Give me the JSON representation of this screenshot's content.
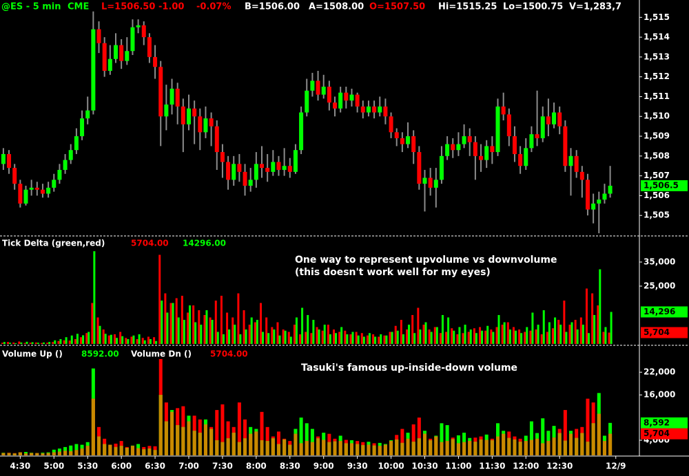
{
  "header": [
    "@ES - 5 min",
    "CME",
    "L=1506.50",
    "-1.00",
    "-0.07%",
    "B=1506.00",
    "A=1508.00",
    "O=1507.50",
    "Hi=1515.25",
    "Lo=1500.75",
    "V=1,283,7"
  ],
  "x_axis": {
    "xlim": [
      -0.6,
      113.2
    ],
    "xticks": [
      {
        "value": 3,
        "label": "4:30"
      },
      {
        "value": 9,
        "label": "5:00"
      },
      {
        "value": 15,
        "label": "5:30"
      },
      {
        "value": 21,
        "label": "6:00"
      },
      {
        "value": 27,
        "label": "6:30"
      },
      {
        "value": 33,
        "label": "7:00"
      },
      {
        "value": 39,
        "label": "7:30"
      },
      {
        "value": 45,
        "label": "8:00"
      },
      {
        "value": 51,
        "label": "8:30"
      },
      {
        "value": 57,
        "label": "9:00"
      },
      {
        "value": 63,
        "label": "9:30"
      },
      {
        "value": 69,
        "label": "10:00"
      },
      {
        "value": 75,
        "label": "10:30"
      },
      {
        "value": 81,
        "label": "11:00"
      },
      {
        "value": 87,
        "label": "11:30"
      },
      {
        "value": 93,
        "label": "12:00"
      },
      {
        "value": 99,
        "label": "12:30"
      },
      {
        "value": 109,
        "label": "12/9"
      }
    ]
  },
  "chart_data": [
    {
      "type": "candlestick",
      "up_color": "#00ff00",
      "down_color": "#ff0000",
      "wick_color": "#8c8c8c",
      "open": [
        1507.6,
        1508.1,
        1507.4,
        1506.6,
        1505.6,
        1506.3,
        1506.4,
        1506.3,
        1506.1,
        1506.4,
        1506.8,
        1507.3,
        1507.8,
        1508.3,
        1509.0,
        1509.9,
        1510.3,
        1514.4,
        1513.7,
        1512.3,
        1512.9,
        1513.6,
        1512.8,
        1513.3,
        1514.5,
        1514.6,
        1514.0,
        1513.0,
        1512.5,
        1510.0,
        1510.6,
        1511.4,
        1510.5,
        1509.6,
        1510.4,
        1510.0,
        1509.2,
        1509.9,
        1509.5,
        1508.2,
        1507.7,
        1506.8,
        1507.6,
        1507.2,
        1506.5,
        1506.8,
        1507.6,
        1507.4,
        1507.2,
        1507.7,
        1507.3,
        1507.5,
        1507.2,
        1508.3,
        1510.2,
        1511.3,
        1511.8,
        1511.1,
        1511.5,
        1510.7,
        1510.4,
        1511.2,
        1510.8,
        1511.1,
        1510.5,
        1510.2,
        1510.5,
        1510.2,
        1510.5,
        1510.0,
        1509.2,
        1508.9,
        1508.6,
        1509.0,
        1508.2,
        1506.6,
        1506.9,
        1506.4,
        1506.8,
        1508.0,
        1508.6,
        1508.3,
        1508.6,
        1509.0,
        1508.7,
        1508.0,
        1507.8,
        1508.5,
        1508.2,
        1510.5,
        1510.1,
        1509.0,
        1508.1,
        1507.5,
        1508.4,
        1509.1,
        1508.9,
        1510.0,
        1509.6,
        1510.2,
        1509.5,
        1507.5,
        1508.0,
        1507.2,
        1506.8,
        1505.3,
        1505.6,
        1505.8,
        1506.1
      ],
      "high": [
        1508.4,
        1508.3,
        1507.6,
        1506.8,
        1506.5,
        1506.8,
        1506.7,
        1506.6,
        1506.7,
        1507.1,
        1507.6,
        1508.1,
        1508.6,
        1509.4,
        1510.3,
        1511.0,
        1515.3,
        1514.8,
        1514.0,
        1513.6,
        1514.2,
        1513.9,
        1514.0,
        1514.9,
        1514.9,
        1514.8,
        1514.2,
        1513.6,
        1512.8,
        1511.6,
        1511.9,
        1511.7,
        1510.9,
        1511.1,
        1510.8,
        1510.4,
        1510.5,
        1510.2,
        1509.8,
        1508.6,
        1508.0,
        1508.0,
        1508.1,
        1507.6,
        1507.4,
        1508.2,
        1508.5,
        1508.1,
        1508.3,
        1508.0,
        1508.4,
        1507.9,
        1508.6,
        1510.5,
        1511.9,
        1512.2,
        1512.3,
        1512.1,
        1511.8,
        1511.0,
        1511.5,
        1511.5,
        1511.4,
        1511.2,
        1510.8,
        1510.8,
        1510.8,
        1511.0,
        1510.9,
        1510.2,
        1509.4,
        1509.2,
        1509.7,
        1509.3,
        1508.5,
        1507.3,
        1507.4,
        1507.4,
        1508.5,
        1509.0,
        1508.9,
        1509.2,
        1509.6,
        1509.4,
        1509.0,
        1508.6,
        1508.8,
        1509.0,
        1510.9,
        1511.2,
        1510.4,
        1509.5,
        1508.5,
        1508.9,
        1509.5,
        1511.3,
        1510.5,
        1510.9,
        1510.7,
        1510.5,
        1509.8,
        1508.4,
        1508.3,
        1507.5,
        1507.1,
        1506.1,
        1506.2,
        1506.6,
        1507.5
      ],
      "low": [
        1507.3,
        1507.1,
        1506.3,
        1505.4,
        1505.5,
        1506.0,
        1506.0,
        1505.9,
        1505.9,
        1506.2,
        1506.6,
        1507.1,
        1507.6,
        1508.1,
        1508.8,
        1509.6,
        1510.1,
        1513.2,
        1512.0,
        1512.1,
        1512.7,
        1512.4,
        1512.6,
        1513.1,
        1514.2,
        1513.6,
        1512.7,
        1511.9,
        1508.5,
        1509.3,
        1510.1,
        1509.6,
        1508.2,
        1509.3,
        1508.6,
        1508.3,
        1508.9,
        1508.5,
        1507.3,
        1506.9,
        1506.3,
        1506.5,
        1506.7,
        1506.0,
        1506.2,
        1506.4,
        1506.9,
        1506.7,
        1507.0,
        1507.0,
        1507.0,
        1506.9,
        1507.1,
        1508.1,
        1510.0,
        1511.0,
        1510.8,
        1510.9,
        1510.3,
        1510.0,
        1510.2,
        1510.4,
        1510.5,
        1510.2,
        1509.9,
        1510.0,
        1509.9,
        1510.0,
        1509.6,
        1508.9,
        1508.5,
        1508.2,
        1508.4,
        1507.6,
        1506.3,
        1505.2,
        1506.0,
        1505.4,
        1506.6,
        1507.8,
        1507.9,
        1508.0,
        1508.4,
        1508.0,
        1506.8,
        1507.2,
        1507.4,
        1507.6,
        1508.0,
        1509.8,
        1508.5,
        1507.7,
        1507.1,
        1507.3,
        1508.2,
        1508.5,
        1508.7,
        1509.0,
        1509.4,
        1509.1,
        1507.2,
        1506.0,
        1506.9,
        1505.9,
        1505.0,
        1504.6,
        1504.1,
        1505.6,
        1505.9
      ],
      "close": [
        1508.1,
        1507.4,
        1506.6,
        1505.6,
        1506.3,
        1506.4,
        1506.3,
        1506.1,
        1506.4,
        1506.8,
        1507.3,
        1507.8,
        1508.3,
        1509.0,
        1509.9,
        1510.3,
        1514.4,
        1513.7,
        1512.3,
        1512.9,
        1513.6,
        1512.8,
        1513.3,
        1514.5,
        1514.6,
        1514.0,
        1513.0,
        1512.5,
        1510.0,
        1510.6,
        1511.4,
        1510.5,
        1509.6,
        1510.4,
        1510.0,
        1509.2,
        1509.9,
        1509.5,
        1508.2,
        1507.7,
        1506.8,
        1507.6,
        1507.2,
        1506.5,
        1506.8,
        1507.6,
        1507.4,
        1507.2,
        1507.7,
        1507.3,
        1507.5,
        1507.2,
        1508.3,
        1510.2,
        1511.3,
        1511.8,
        1511.1,
        1511.5,
        1510.7,
        1510.4,
        1511.2,
        1510.8,
        1511.1,
        1510.5,
        1510.2,
        1510.5,
        1510.2,
        1510.5,
        1510.0,
        1509.2,
        1508.9,
        1508.6,
        1509.0,
        1508.2,
        1506.6,
        1506.9,
        1506.4,
        1506.8,
        1508.0,
        1508.6,
        1508.3,
        1508.6,
        1509.0,
        1508.7,
        1508.0,
        1507.8,
        1508.5,
        1508.2,
        1510.5,
        1510.1,
        1509.0,
        1508.1,
        1507.5,
        1508.4,
        1509.1,
        1508.9,
        1510.0,
        1509.6,
        1510.2,
        1509.5,
        1507.5,
        1508.0,
        1507.2,
        1506.8,
        1505.3,
        1505.6,
        1505.8,
        1506.1,
        1506.5
      ],
      "ylim": [
        1504.0,
        1515.6
      ],
      "yticks": [
        {
          "value": 1505,
          "label": "1,505"
        },
        {
          "value": 1506,
          "label": "1,506"
        },
        {
          "value": 1507,
          "label": "1,507"
        },
        {
          "value": 1508,
          "label": "1,508"
        },
        {
          "value": 1509,
          "label": "1,509"
        },
        {
          "value": 1510,
          "label": "1,510"
        },
        {
          "value": 1511,
          "label": "1,511"
        },
        {
          "value": 1512,
          "label": "1,512"
        },
        {
          "value": 1513,
          "label": "1,513"
        },
        {
          "value": 1514,
          "label": "1,514"
        },
        {
          "value": 1515,
          "label": "1,515"
        }
      ],
      "last_label": "1,506.5"
    },
    {
      "type": "paired-bar",
      "title": "Tick Delta (green,red)",
      "annotations": [
        "One way to represent upvolume vs downvolume",
        "(this doesn't work well for my eyes)"
      ],
      "series": [
        {
          "color": "#ff0000",
          "readout": "5704.00",
          "last_label": "5,704",
          "values": [
            1500,
            1800,
            1600,
            2000,
            1400,
            1500,
            1600,
            1400,
            1500,
            1800,
            2200,
            2500,
            2400,
            3000,
            3800,
            5500,
            18000,
            12000,
            7000,
            4500,
            5000,
            6000,
            3500,
            4000,
            3000,
            3500,
            4000,
            3800,
            38000,
            22000,
            18000,
            20000,
            21000,
            14000,
            17000,
            15000,
            13000,
            12000,
            19000,
            21000,
            14000,
            12000,
            22000,
            15000,
            9000,
            10000,
            18000,
            12000,
            8000,
            10000,
            7000,
            6000,
            9000,
            5000,
            6000,
            5500,
            8000,
            6500,
            9000,
            7000,
            6000,
            6500,
            5000,
            6000,
            5500,
            4500,
            5000,
            4000,
            4500,
            6000,
            8500,
            11000,
            7000,
            13000,
            16000,
            9000,
            7000,
            8000,
            5500,
            6000,
            7500,
            5000,
            5500,
            6000,
            7500,
            8000,
            6500,
            7000,
            8000,
            9000,
            10000,
            8000,
            7000,
            6000,
            6500,
            7000,
            5000,
            6000,
            7500,
            11000,
            19000,
            9000,
            11000,
            12000,
            24000,
            22000,
            17000,
            6000,
            5704
          ]
        },
        {
          "color": "#00ff00",
          "readout": "14296.00",
          "last_label": "14,296",
          "values": [
            1800,
            1500,
            1300,
            1600,
            1900,
            1700,
            1500,
            1600,
            1800,
            2500,
            3000,
            3800,
            4500,
            5200,
            4600,
            6000,
            39500,
            8500,
            5200,
            4800,
            3500,
            4200,
            3000,
            4500,
            5000,
            2500,
            3000,
            2200,
            19000,
            14000,
            18000,
            12000,
            11000,
            17000,
            10000,
            9000,
            15000,
            11000,
            6000,
            5000,
            7000,
            9000,
            5000,
            7000,
            12000,
            11000,
            6000,
            5500,
            7000,
            4500,
            6500,
            4000,
            12000,
            16000,
            13000,
            11000,
            7000,
            9000,
            5000,
            5500,
            8000,
            5000,
            6000,
            4500,
            4000,
            5500,
            4000,
            5000,
            4500,
            6000,
            6500,
            5000,
            9000,
            5500,
            7000,
            10000,
            6000,
            8000,
            13000,
            12000,
            6500,
            8000,
            9000,
            7000,
            5500,
            6500,
            8500,
            6000,
            13000,
            10000,
            7000,
            6500,
            5500,
            8000,
            14000,
            9000,
            15000,
            10000,
            12000,
            9000,
            6000,
            10000,
            7000,
            9000,
            5500,
            13000,
            32000,
            8000,
            14296
          ]
        }
      ],
      "ylim": [
        1000,
        44700
      ],
      "yticks": [
        {
          "value": 25000,
          "label": "25,000"
        },
        {
          "value": 35000,
          "label": "35,000"
        }
      ]
    },
    {
      "type": "overlap-bar",
      "overlap_color": "#c98a00",
      "annotations": [
        "Tasuki's famous up-inside-down volume"
      ],
      "series": [
        {
          "name": "Volume Up ()",
          "color": "#00ff00",
          "readout": "8592.00",
          "last_label": "8,592",
          "values": [
            700,
            600,
            500,
            800,
            900,
            700,
            600,
            700,
            800,
            1500,
            1800,
            2200,
            2600,
            3000,
            2800,
            3500,
            23000,
            5000,
            3000,
            2800,
            2200,
            2500,
            2000,
            2600,
            3000,
            1600,
            1800,
            1400,
            16000,
            9000,
            12000,
            8000,
            7500,
            10500,
            6500,
            6000,
            9500,
            7000,
            4000,
            3500,
            4500,
            6000,
            3500,
            4500,
            7500,
            7000,
            4000,
            3800,
            4500,
            3000,
            4200,
            2800,
            7000,
            10000,
            8500,
            7000,
            4500,
            6000,
            3500,
            3700,
            5200,
            3200,
            4000,
            3000,
            2700,
            3600,
            2600,
            3300,
            3000,
            4000,
            4200,
            3300,
            6000,
            3600,
            4500,
            6500,
            4000,
            5200,
            8500,
            8000,
            4300,
            5300,
            6000,
            4600,
            3600,
            4200,
            5500,
            4000,
            8500,
            6500,
            4600,
            4200,
            3600,
            5200,
            9000,
            5900,
            9800,
            6500,
            7800,
            5900,
            3900,
            6500,
            4600,
            5900,
            3600,
            8500,
            16500,
            5200,
            8592
          ]
        },
        {
          "name": "Volume Dn ()",
          "color": "#ff0000",
          "readout": "5704.00",
          "last_label": "5,704",
          "values": [
            600,
            700,
            600,
            800,
            500,
            600,
            600,
            500,
            600,
            800,
            1000,
            1200,
            1100,
            1400,
            1800,
            2500,
            15000,
            7500,
            4400,
            2800,
            3100,
            3800,
            2200,
            2500,
            1900,
            2200,
            2500,
            2400,
            25500,
            14000,
            11500,
            12500,
            13000,
            9000,
            10500,
            9500,
            8200,
            7500,
            12000,
            13500,
            9000,
            7500,
            14000,
            9500,
            5700,
            6300,
            11500,
            7500,
            5000,
            6300,
            4400,
            3800,
            5700,
            3200,
            3800,
            3500,
            5000,
            4100,
            5700,
            4400,
            3800,
            4100,
            3200,
            3800,
            3500,
            2800,
            3200,
            2500,
            2800,
            3800,
            5400,
            7000,
            4400,
            8200,
            10000,
            5700,
            4400,
            5000,
            3500,
            3800,
            4700,
            3200,
            3500,
            3800,
            4700,
            5000,
            4100,
            4400,
            5000,
            5700,
            6300,
            5000,
            4400,
            3800,
            4100,
            4400,
            3200,
            3800,
            4700,
            7000,
            12000,
            5700,
            7000,
            7500,
            15000,
            14000,
            11000,
            3800,
            5704
          ]
        }
      ],
      "ylim": [
        0,
        28400
      ],
      "yticks": [
        {
          "value": 4000,
          "label": "4,000"
        },
        {
          "value": 16000,
          "label": "16,000"
        },
        {
          "value": 22000,
          "label": "22,000"
        }
      ]
    }
  ]
}
